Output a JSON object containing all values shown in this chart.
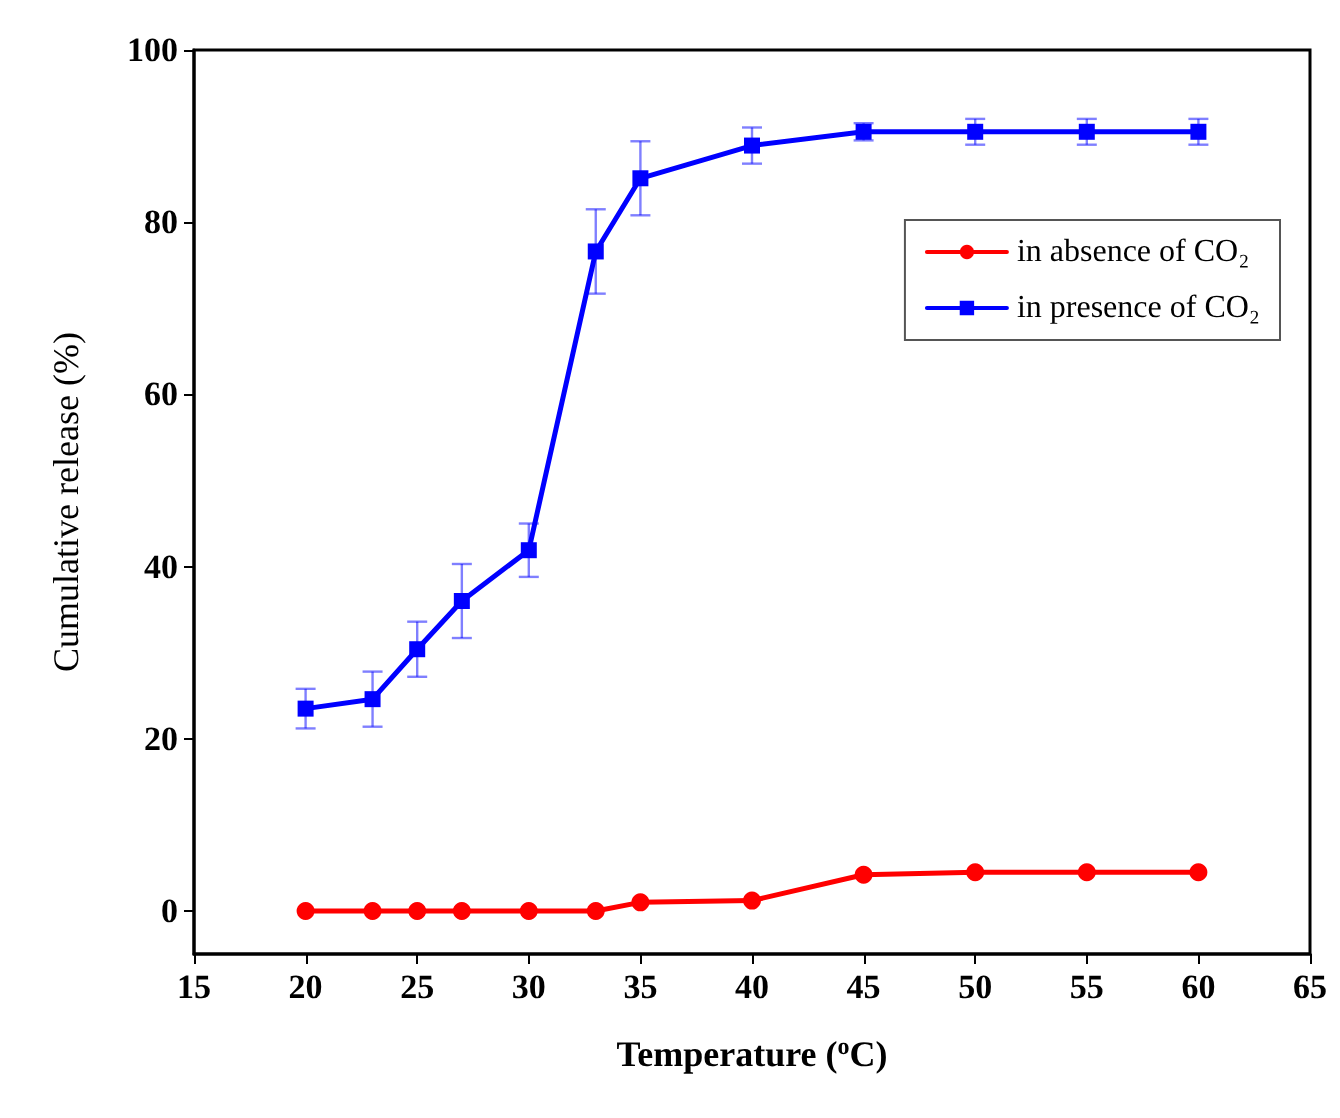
{
  "chart_data": {
    "type": "line",
    "xlabel": "Temperature ($^{o}$C)",
    "ylabel": "Cumulative release (%)",
    "x": [
      20,
      23,
      25,
      27,
      30,
      33,
      35,
      40,
      45,
      50,
      55,
      60
    ],
    "series": [
      {
        "name": "in absence of CO₂",
        "color": "#ff0000",
        "marker": "circle",
        "values": [
          0,
          0,
          0,
          0,
          0,
          0,
          1.0,
          1.2,
          4.2,
          4.5,
          4.5,
          4.5
        ]
      },
      {
        "name": "in presence of CO₂",
        "color": "#0000ff",
        "marker": "square",
        "values": [
          23.5,
          24.6,
          30.4,
          36.0,
          41.9,
          76.6,
          85.1,
          88.9,
          90.5,
          90.5,
          90.5,
          90.5
        ],
        "errors": [
          2.3,
          3.2,
          3.2,
          4.3,
          3.1,
          4.9,
          4.3,
          2.1,
          1,
          1.5,
          1.5,
          1.5
        ]
      }
    ],
    "xlim": [
      15,
      65
    ],
    "xticks": [
      15,
      20,
      25,
      30,
      35,
      40,
      45,
      50,
      55,
      60,
      65
    ],
    "ylim": [
      -5,
      100
    ],
    "yticks": [
      0,
      20,
      40,
      60,
      80,
      100
    ],
    "grid": false,
    "legend": "top right",
    "line_style": "solid"
  }
}
